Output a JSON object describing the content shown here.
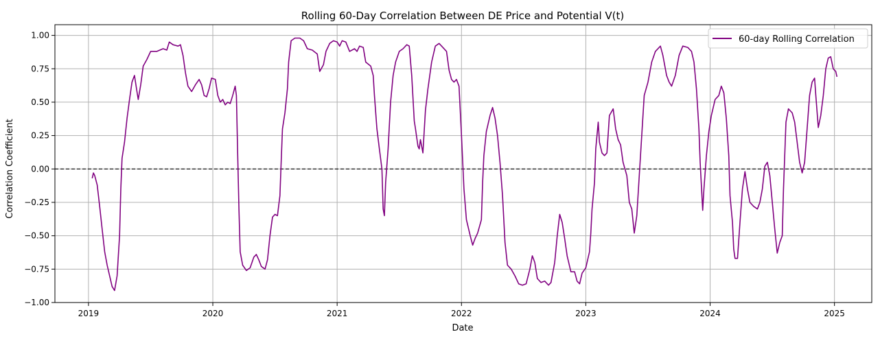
{
  "chart_data": {
    "type": "line",
    "title": "Rolling 60-Day Correlation Between DE Price and Potential V(t)",
    "xlabel": "Date",
    "ylabel": "Correlation Coefficient",
    "xlim": [
      2018.73,
      2025.3
    ],
    "ylim": [
      -1.0,
      1.08
    ],
    "x_ticks": [
      2019,
      2020,
      2021,
      2022,
      2023,
      2024,
      2025
    ],
    "x_tick_labels": [
      "2019",
      "2020",
      "2021",
      "2022",
      "2023",
      "2024",
      "2025"
    ],
    "y_ticks": [
      -1.0,
      -0.75,
      -0.5,
      -0.25,
      0.0,
      0.25,
      0.5,
      0.75,
      1.0
    ],
    "y_tick_labels": [
      "−1.00",
      "−0.75",
      "−0.50",
      "−0.25",
      "0.00",
      "0.25",
      "0.50",
      "0.75",
      "1.00"
    ],
    "grid": true,
    "legend_position": "top-right",
    "reference_line": {
      "y": 0.0,
      "style": "dashed",
      "color": "#000000"
    },
    "series": [
      {
        "name": "60-day Rolling Correlation",
        "color": "#800080",
        "points": [
          [
            2019.03,
            -0.07
          ],
          [
            2019.04,
            -0.03
          ],
          [
            2019.05,
            -0.05
          ],
          [
            2019.07,
            -0.12
          ],
          [
            2019.09,
            -0.28
          ],
          [
            2019.11,
            -0.45
          ],
          [
            2019.13,
            -0.62
          ],
          [
            2019.15,
            -0.72
          ],
          [
            2019.17,
            -0.8
          ],
          [
            2019.19,
            -0.88
          ],
          [
            2019.21,
            -0.91
          ],
          [
            2019.23,
            -0.8
          ],
          [
            2019.25,
            -0.5
          ],
          [
            2019.26,
            -0.15
          ],
          [
            2019.27,
            0.08
          ],
          [
            2019.29,
            0.2
          ],
          [
            2019.31,
            0.38
          ],
          [
            2019.33,
            0.52
          ],
          [
            2019.35,
            0.65
          ],
          [
            2019.37,
            0.7
          ],
          [
            2019.39,
            0.58
          ],
          [
            2019.4,
            0.52
          ],
          [
            2019.42,
            0.63
          ],
          [
            2019.44,
            0.77
          ],
          [
            2019.47,
            0.82
          ],
          [
            2019.5,
            0.88
          ],
          [
            2019.55,
            0.88
          ],
          [
            2019.6,
            0.9
          ],
          [
            2019.63,
            0.89
          ],
          [
            2019.65,
            0.95
          ],
          [
            2019.68,
            0.93
          ],
          [
            2019.72,
            0.92
          ],
          [
            2019.74,
            0.93
          ],
          [
            2019.76,
            0.85
          ],
          [
            2019.78,
            0.72
          ],
          [
            2019.8,
            0.62
          ],
          [
            2019.83,
            0.58
          ],
          [
            2019.86,
            0.63
          ],
          [
            2019.89,
            0.67
          ],
          [
            2019.91,
            0.63
          ],
          [
            2019.93,
            0.55
          ],
          [
            2019.95,
            0.54
          ],
          [
            2019.97,
            0.6
          ],
          [
            2019.99,
            0.68
          ],
          [
            2020.02,
            0.67
          ],
          [
            2020.04,
            0.55
          ],
          [
            2020.06,
            0.5
          ],
          [
            2020.08,
            0.52
          ],
          [
            2020.1,
            0.48
          ],
          [
            2020.12,
            0.5
          ],
          [
            2020.14,
            0.49
          ],
          [
            2020.16,
            0.55
          ],
          [
            2020.18,
            0.62
          ],
          [
            2020.19,
            0.55
          ],
          [
            2020.2,
            0.1
          ],
          [
            2020.21,
            -0.3
          ],
          [
            2020.22,
            -0.62
          ],
          [
            2020.24,
            -0.72
          ],
          [
            2020.27,
            -0.76
          ],
          [
            2020.3,
            -0.74
          ],
          [
            2020.33,
            -0.66
          ],
          [
            2020.35,
            -0.64
          ],
          [
            2020.37,
            -0.68
          ],
          [
            2020.39,
            -0.73
          ],
          [
            2020.42,
            -0.75
          ],
          [
            2020.44,
            -0.68
          ],
          [
            2020.46,
            -0.5
          ],
          [
            2020.48,
            -0.36
          ],
          [
            2020.5,
            -0.34
          ],
          [
            2020.52,
            -0.35
          ],
          [
            2020.54,
            -0.2
          ],
          [
            2020.55,
            0.05
          ],
          [
            2020.56,
            0.3
          ],
          [
            2020.58,
            0.42
          ],
          [
            2020.6,
            0.6
          ],
          [
            2020.61,
            0.8
          ],
          [
            2020.63,
            0.96
          ],
          [
            2020.66,
            0.98
          ],
          [
            2020.7,
            0.98
          ],
          [
            2020.73,
            0.96
          ],
          [
            2020.76,
            0.9
          ],
          [
            2020.8,
            0.89
          ],
          [
            2020.84,
            0.86
          ],
          [
            2020.86,
            0.73
          ],
          [
            2020.89,
            0.78
          ],
          [
            2020.91,
            0.88
          ],
          [
            2020.94,
            0.94
          ],
          [
            2020.97,
            0.96
          ],
          [
            2021.0,
            0.95
          ],
          [
            2021.02,
            0.92
          ],
          [
            2021.04,
            0.96
          ],
          [
            2021.07,
            0.95
          ],
          [
            2021.1,
            0.88
          ],
          [
            2021.14,
            0.9
          ],
          [
            2021.16,
            0.88
          ],
          [
            2021.18,
            0.92
          ],
          [
            2021.21,
            0.91
          ],
          [
            2021.23,
            0.8
          ],
          [
            2021.27,
            0.77
          ],
          [
            2021.29,
            0.7
          ],
          [
            2021.3,
            0.55
          ],
          [
            2021.32,
            0.3
          ],
          [
            2021.34,
            0.15
          ],
          [
            2021.36,
            0.0
          ],
          [
            2021.37,
            -0.3
          ],
          [
            2021.38,
            -0.35
          ],
          [
            2021.39,
            -0.1
          ],
          [
            2021.41,
            0.15
          ],
          [
            2021.43,
            0.5
          ],
          [
            2021.45,
            0.7
          ],
          [
            2021.47,
            0.8
          ],
          [
            2021.5,
            0.88
          ],
          [
            2021.53,
            0.9
          ],
          [
            2021.56,
            0.93
          ],
          [
            2021.58,
            0.92
          ],
          [
            2021.6,
            0.7
          ],
          [
            2021.62,
            0.36
          ],
          [
            2021.63,
            0.3
          ],
          [
            2021.65,
            0.17
          ],
          [
            2021.66,
            0.15
          ],
          [
            2021.67,
            0.22
          ],
          [
            2021.69,
            0.12
          ],
          [
            2021.71,
            0.44
          ],
          [
            2021.73,
            0.6
          ],
          [
            2021.76,
            0.8
          ],
          [
            2021.79,
            0.92
          ],
          [
            2021.82,
            0.94
          ],
          [
            2021.85,
            0.91
          ],
          [
            2021.88,
            0.88
          ],
          [
            2021.9,
            0.74
          ],
          [
            2021.92,
            0.67
          ],
          [
            2021.94,
            0.65
          ],
          [
            2021.96,
            0.67
          ],
          [
            2021.98,
            0.62
          ],
          [
            2022.0,
            0.25
          ],
          [
            2022.02,
            -0.15
          ],
          [
            2022.04,
            -0.38
          ],
          [
            2022.07,
            -0.5
          ],
          [
            2022.09,
            -0.57
          ],
          [
            2022.11,
            -0.52
          ],
          [
            2022.13,
            -0.48
          ],
          [
            2022.16,
            -0.38
          ],
          [
            2022.17,
            -0.1
          ],
          [
            2022.18,
            0.1
          ],
          [
            2022.2,
            0.28
          ],
          [
            2022.23,
            0.4
          ],
          [
            2022.25,
            0.46
          ],
          [
            2022.27,
            0.38
          ],
          [
            2022.29,
            0.25
          ],
          [
            2022.31,
            0.05
          ],
          [
            2022.33,
            -0.2
          ],
          [
            2022.35,
            -0.55
          ],
          [
            2022.37,
            -0.72
          ],
          [
            2022.4,
            -0.75
          ],
          [
            2022.43,
            -0.8
          ],
          [
            2022.46,
            -0.86
          ],
          [
            2022.49,
            -0.87
          ],
          [
            2022.52,
            -0.86
          ],
          [
            2022.55,
            -0.75
          ],
          [
            2022.57,
            -0.65
          ],
          [
            2022.59,
            -0.7
          ],
          [
            2022.61,
            -0.82
          ],
          [
            2022.64,
            -0.85
          ],
          [
            2022.67,
            -0.84
          ],
          [
            2022.7,
            -0.87
          ],
          [
            2022.72,
            -0.85
          ],
          [
            2022.75,
            -0.7
          ],
          [
            2022.77,
            -0.5
          ],
          [
            2022.79,
            -0.34
          ],
          [
            2022.81,
            -0.4
          ],
          [
            2022.83,
            -0.52
          ],
          [
            2022.85,
            -0.65
          ],
          [
            2022.88,
            -0.77
          ],
          [
            2022.91,
            -0.77
          ],
          [
            2022.93,
            -0.84
          ],
          [
            2022.95,
            -0.86
          ],
          [
            2022.97,
            -0.78
          ],
          [
            2023.0,
            -0.74
          ],
          [
            2023.03,
            -0.62
          ],
          [
            2023.04,
            -0.48
          ],
          [
            2023.05,
            -0.3
          ],
          [
            2023.07,
            -0.1
          ],
          [
            2023.08,
            0.15
          ],
          [
            2023.1,
            0.35
          ],
          [
            2023.11,
            0.2
          ],
          [
            2023.13,
            0.12
          ],
          [
            2023.15,
            0.1
          ],
          [
            2023.17,
            0.12
          ],
          [
            2023.19,
            0.4
          ],
          [
            2023.22,
            0.45
          ],
          [
            2023.24,
            0.3
          ],
          [
            2023.26,
            0.22
          ],
          [
            2023.28,
            0.18
          ],
          [
            2023.3,
            0.05
          ],
          [
            2023.33,
            -0.05
          ],
          [
            2023.35,
            -0.25
          ],
          [
            2023.37,
            -0.3
          ],
          [
            2023.39,
            -0.48
          ],
          [
            2023.41,
            -0.35
          ],
          [
            2023.43,
            -0.05
          ],
          [
            2023.45,
            0.25
          ],
          [
            2023.47,
            0.55
          ],
          [
            2023.5,
            0.65
          ],
          [
            2023.53,
            0.8
          ],
          [
            2023.56,
            0.88
          ],
          [
            2023.6,
            0.92
          ],
          [
            2023.62,
            0.85
          ],
          [
            2023.65,
            0.7
          ],
          [
            2023.67,
            0.65
          ],
          [
            2023.69,
            0.62
          ],
          [
            2023.72,
            0.7
          ],
          [
            2023.75,
            0.85
          ],
          [
            2023.78,
            0.92
          ],
          [
            2023.82,
            0.91
          ],
          [
            2023.85,
            0.88
          ],
          [
            2023.87,
            0.8
          ],
          [
            2023.89,
            0.6
          ],
          [
            2023.91,
            0.3
          ],
          [
            2023.92,
            0.05
          ],
          [
            2023.94,
            -0.31
          ],
          [
            2023.95,
            -0.15
          ],
          [
            2023.97,
            0.1
          ],
          [
            2023.99,
            0.28
          ],
          [
            2024.01,
            0.4
          ],
          [
            2024.04,
            0.52
          ],
          [
            2024.07,
            0.55
          ],
          [
            2024.09,
            0.62
          ],
          [
            2024.11,
            0.57
          ],
          [
            2024.13,
            0.38
          ],
          [
            2024.15,
            0.1
          ],
          [
            2024.16,
            -0.2
          ],
          [
            2024.18,
            -0.4
          ],
          [
            2024.19,
            -0.6
          ],
          [
            2024.2,
            -0.67
          ],
          [
            2024.22,
            -0.67
          ],
          [
            2024.24,
            -0.4
          ],
          [
            2024.26,
            -0.15
          ],
          [
            2024.28,
            -0.02
          ],
          [
            2024.3,
            -0.15
          ],
          [
            2024.32,
            -0.25
          ],
          [
            2024.35,
            -0.28
          ],
          [
            2024.38,
            -0.3
          ],
          [
            2024.4,
            -0.25
          ],
          [
            2024.42,
            -0.15
          ],
          [
            2024.44,
            0.02
          ],
          [
            2024.46,
            0.05
          ],
          [
            2024.48,
            -0.05
          ],
          [
            2024.5,
            -0.25
          ],
          [
            2024.52,
            -0.45
          ],
          [
            2024.54,
            -0.63
          ],
          [
            2024.56,
            -0.55
          ],
          [
            2024.58,
            -0.5
          ],
          [
            2024.59,
            -0.15
          ],
          [
            2024.6,
            0.1
          ],
          [
            2024.61,
            0.35
          ],
          [
            2024.63,
            0.45
          ],
          [
            2024.66,
            0.42
          ],
          [
            2024.68,
            0.35
          ],
          [
            2024.7,
            0.2
          ],
          [
            2024.72,
            0.05
          ],
          [
            2024.74,
            -0.03
          ],
          [
            2024.76,
            0.05
          ],
          [
            2024.78,
            0.3
          ],
          [
            2024.8,
            0.55
          ],
          [
            2024.82,
            0.65
          ],
          [
            2024.84,
            0.68
          ],
          [
            2024.85,
            0.55
          ],
          [
            2024.87,
            0.31
          ],
          [
            2024.89,
            0.4
          ],
          [
            2024.91,
            0.55
          ],
          [
            2024.93,
            0.75
          ],
          [
            2024.95,
            0.83
          ],
          [
            2024.97,
            0.84
          ],
          [
            2024.99,
            0.75
          ],
          [
            2025.01,
            0.73
          ],
          [
            2025.02,
            0.69
          ]
        ]
      }
    ]
  }
}
